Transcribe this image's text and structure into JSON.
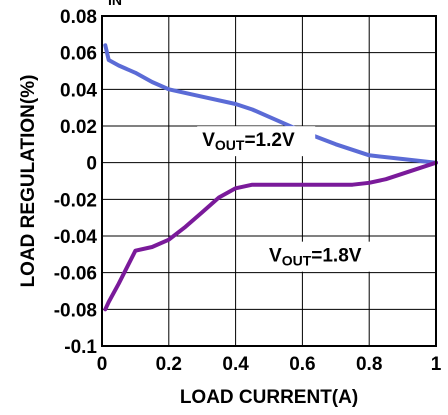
{
  "chart_data": {
    "type": "line",
    "title": "",
    "top_fragment": "IN",
    "xlabel": "LOAD CURRENT(A)",
    "ylabel": "LOAD REGULATION(%)",
    "xlim": [
      0,
      1
    ],
    "ylim": [
      -0.1,
      0.08
    ],
    "x_ticks": [
      0,
      0.2,
      0.4,
      0.6,
      0.8,
      1
    ],
    "x_tick_labels": [
      "0",
      "0.2",
      "0.4",
      "0.6",
      "0.8",
      "1"
    ],
    "y_ticks": [
      0.08,
      0.06,
      0.04,
      0.02,
      0,
      -0.02,
      -0.04,
      -0.06,
      -0.08,
      -0.1
    ],
    "y_tick_labels": [
      "0.08",
      "0.06",
      "0.04",
      "0.02",
      "0",
      "-0.02",
      "-0.04",
      "-0.06",
      "-0.08",
      "-0.1"
    ],
    "grid": true,
    "series": [
      {
        "color": "#5b6bd6",
        "label_main": "V",
        "label_sub": "OUT",
        "label_rest": "=1.2V",
        "label_at": [
          0.3,
          0.009
        ],
        "x": [
          0.01,
          0.02,
          0.05,
          0.1,
          0.15,
          0.2,
          0.3,
          0.4,
          0.45,
          0.5,
          0.6,
          0.7,
          0.8,
          0.9,
          1.0
        ],
        "y": [
          0.064,
          0.056,
          0.053,
          0.049,
          0.044,
          0.04,
          0.036,
          0.032,
          0.029,
          0.025,
          0.017,
          0.01,
          0.004,
          0.002,
          0.0
        ]
      },
      {
        "color": "#7a1a9a",
        "label_main": "V",
        "label_sub": "OUT",
        "label_rest": "=1.8V",
        "label_at": [
          0.5,
          -0.054
        ],
        "x": [
          0.01,
          0.02,
          0.05,
          0.1,
          0.15,
          0.2,
          0.25,
          0.3,
          0.35,
          0.4,
          0.45,
          0.5,
          0.6,
          0.7,
          0.75,
          0.8,
          0.85,
          0.9,
          0.95,
          1.0
        ],
        "y": [
          -0.08,
          -0.076,
          -0.066,
          -0.048,
          -0.046,
          -0.042,
          -0.035,
          -0.027,
          -0.019,
          -0.014,
          -0.012,
          -0.012,
          -0.012,
          -0.012,
          -0.012,
          -0.011,
          -0.009,
          -0.006,
          -0.003,
          0.0
        ]
      }
    ]
  }
}
